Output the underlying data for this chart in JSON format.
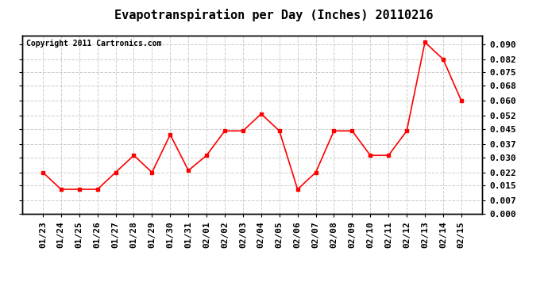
{
  "title": "Evapotranspiration per Day (Inches) 20110216",
  "copyright_text": "Copyright 2011 Cartronics.com",
  "dates": [
    "01/23",
    "01/24",
    "01/25",
    "01/26",
    "01/27",
    "01/28",
    "01/29",
    "01/30",
    "01/31",
    "02/01",
    "02/02",
    "02/03",
    "02/04",
    "02/05",
    "02/06",
    "02/07",
    "02/08",
    "02/09",
    "02/10",
    "02/11",
    "02/12",
    "02/13",
    "02/14",
    "02/15"
  ],
  "values": [
    0.022,
    0.013,
    0.013,
    0.013,
    0.022,
    0.031,
    0.022,
    0.042,
    0.023,
    0.031,
    0.044,
    0.044,
    0.053,
    0.044,
    0.013,
    0.022,
    0.044,
    0.044,
    0.031,
    0.031,
    0.044,
    0.091,
    0.082,
    0.06
  ],
  "ylim": [
    0.0,
    0.0945
  ],
  "yticks": [
    0.0,
    0.007,
    0.015,
    0.022,
    0.03,
    0.037,
    0.045,
    0.052,
    0.06,
    0.068,
    0.075,
    0.082,
    0.09
  ],
  "line_color": "red",
  "marker": "s",
  "marker_size": 3,
  "grid_color": "#cccccc",
  "background_color": "#ffffff",
  "title_fontsize": 11,
  "copyright_fontsize": 7,
  "tick_fontsize": 8
}
